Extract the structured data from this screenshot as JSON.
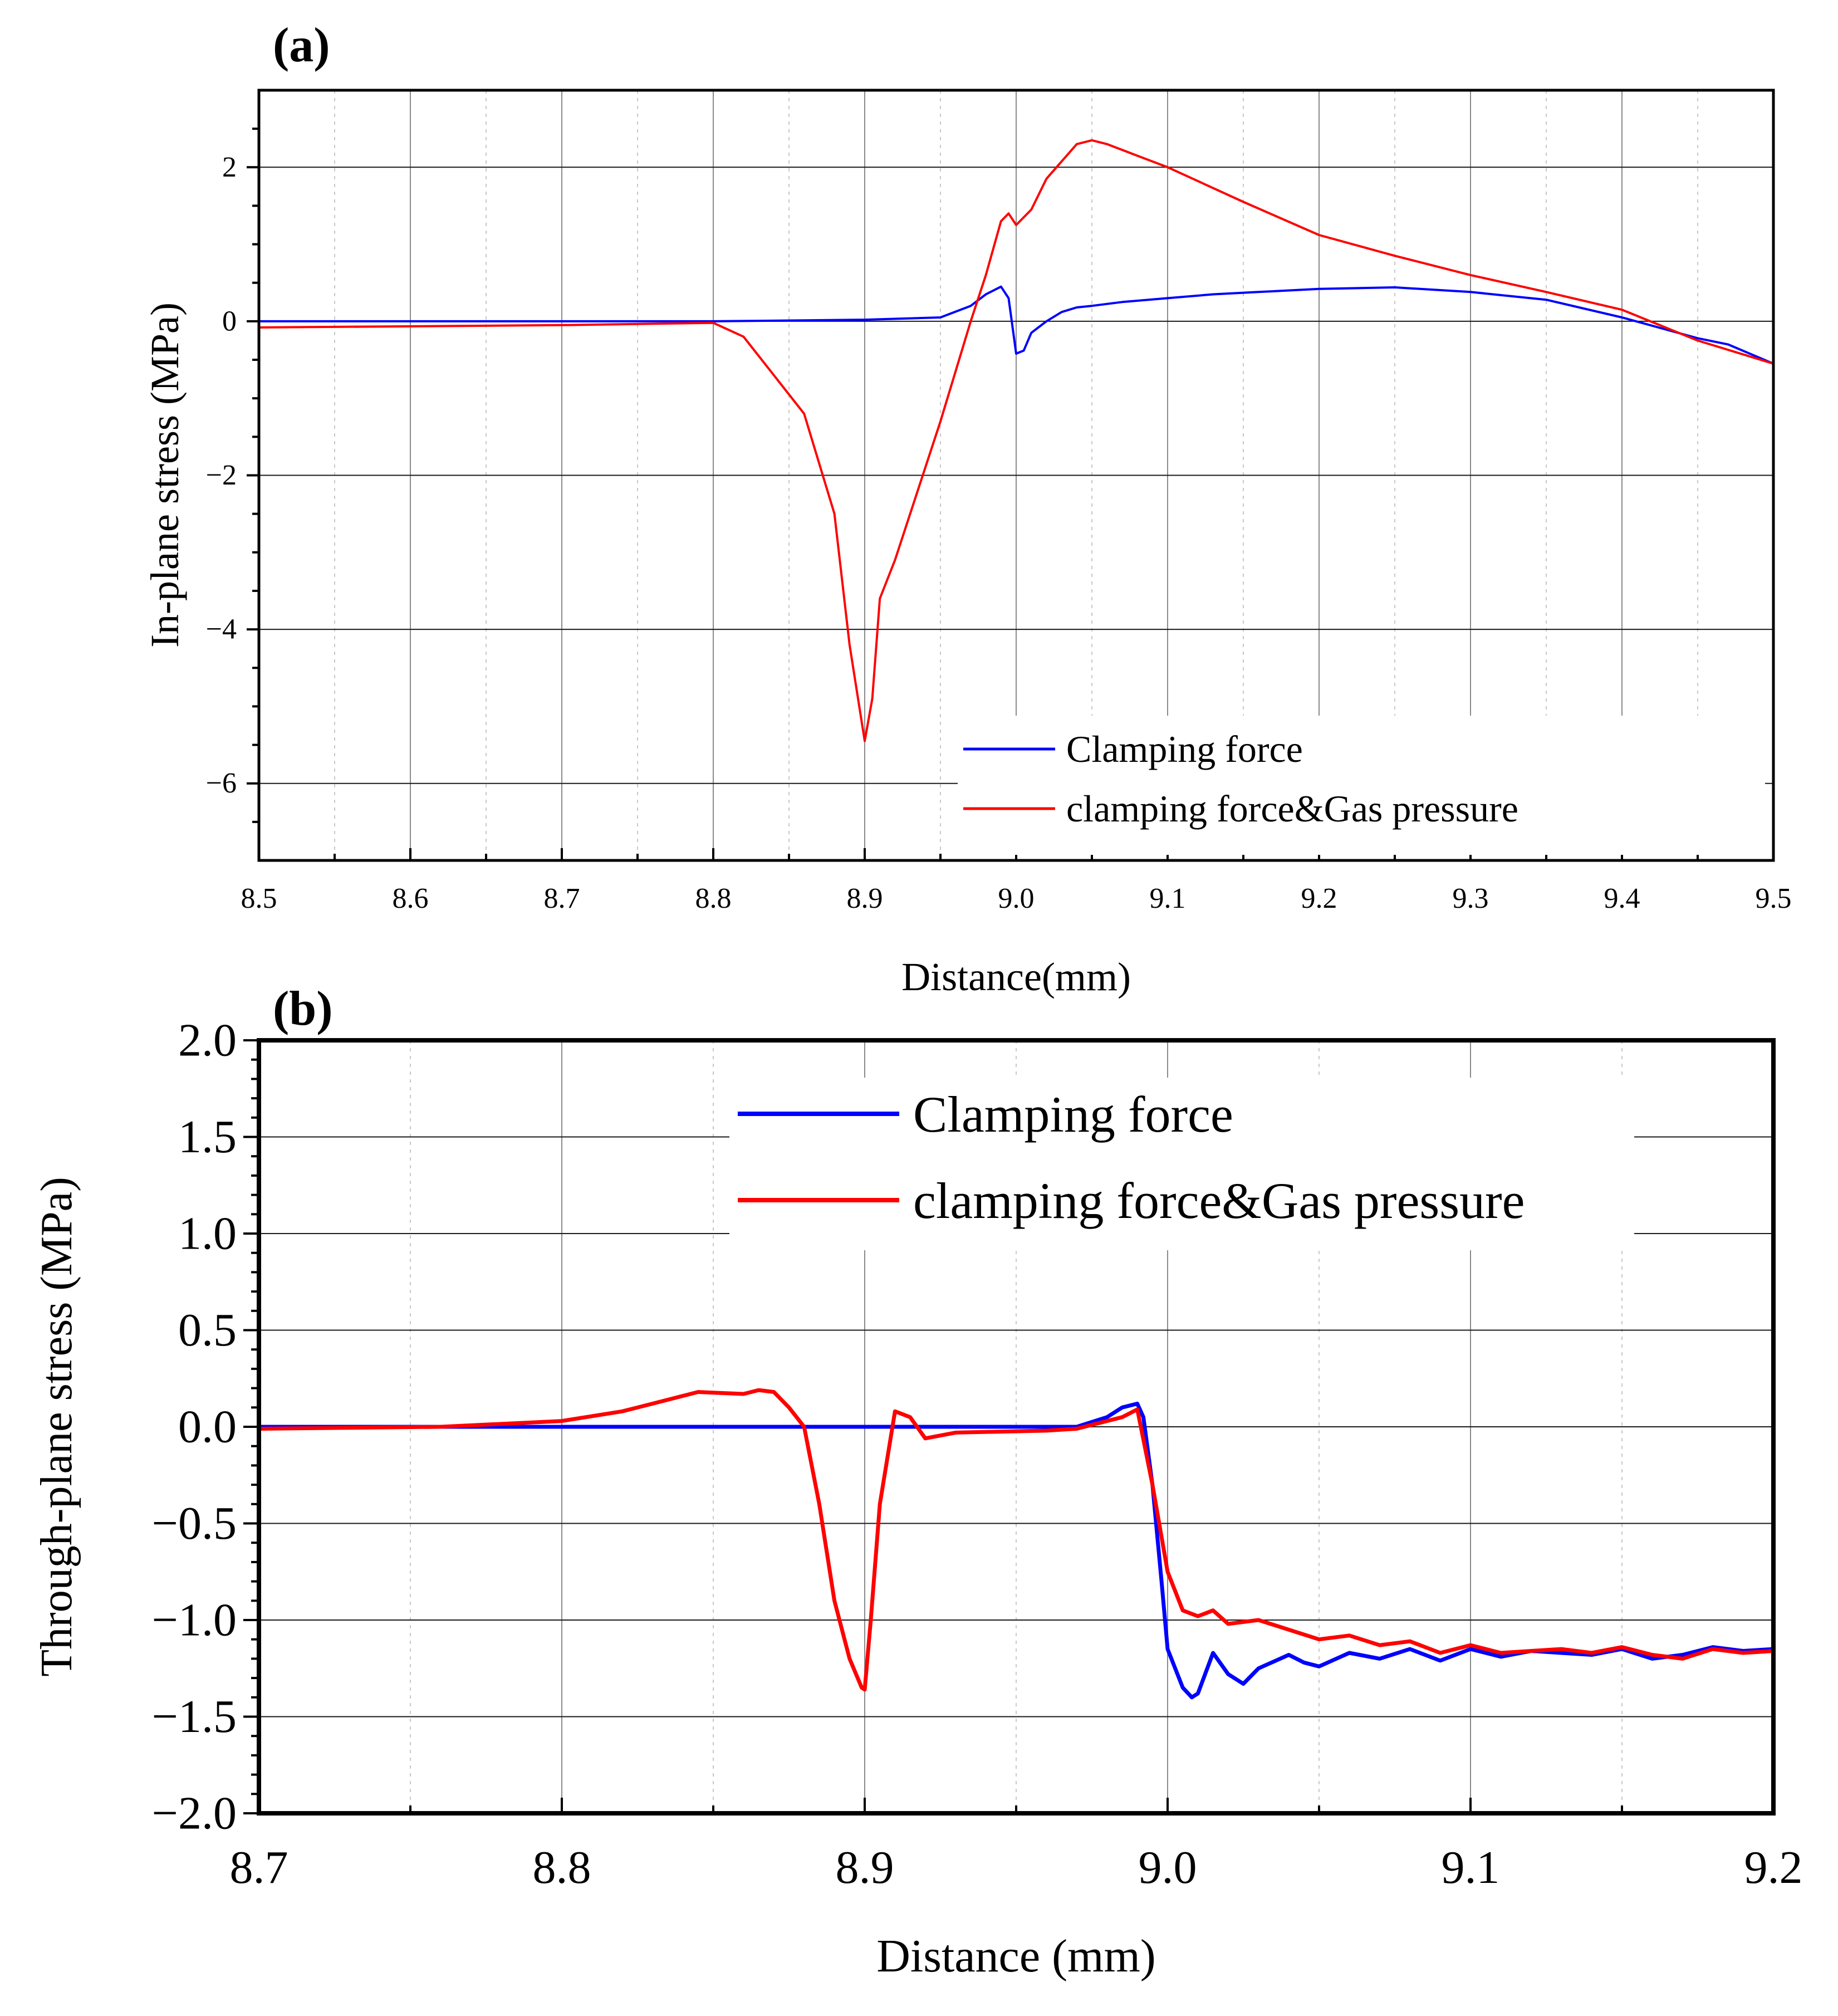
{
  "chart_data": [
    {
      "panel": "(a)",
      "type": "line",
      "xlabel": "Distance(mm)",
      "ylabel": "In-plane stress (MPa)",
      "xlim": [
        8.5,
        9.5
      ],
      "ylim": [
        -7,
        3
      ],
      "xticks": [
        8.5,
        8.6,
        8.7,
        8.8,
        8.9,
        9.0,
        9.1,
        9.2,
        9.3,
        9.4,
        9.5
      ],
      "xtick_labels": [
        "8.5",
        "8.6",
        "8.7",
        "8.8",
        "8.9",
        "9.0",
        "9.1",
        "9.2",
        "9.3",
        "9.4",
        "9.5"
      ],
      "yticks": [
        -6,
        -4,
        -2,
        0,
        2
      ],
      "ytick_labels": [
        "−6",
        "−4",
        "−2",
        "0",
        "2"
      ],
      "grid": true,
      "legend_position": "bottom-right",
      "series": [
        {
          "name": "Clamping force",
          "color": "#0000ff",
          "x": [
            8.5,
            8.8,
            8.9,
            8.95,
            8.97,
            8.98,
            8.99,
            8.995,
            9.0,
            9.005,
            9.01,
            9.02,
            9.03,
            9.04,
            9.05,
            9.07,
            9.1,
            9.13,
            9.16,
            9.2,
            9.25,
            9.3,
            9.35,
            9.4,
            9.45,
            9.47,
            9.5
          ],
          "y": [
            0.0,
            0.0,
            0.02,
            0.05,
            0.2,
            0.35,
            0.45,
            0.3,
            -0.42,
            -0.38,
            -0.15,
            0.0,
            0.12,
            0.18,
            0.2,
            0.25,
            0.3,
            0.35,
            0.38,
            0.42,
            0.44,
            0.38,
            0.28,
            0.05,
            -0.22,
            -0.3,
            -0.55
          ]
        },
        {
          "name": "clamping force&Gas pressure",
          "color": "#ff0000",
          "x": [
            8.5,
            8.7,
            8.8,
            8.82,
            8.84,
            8.86,
            8.88,
            8.89,
            8.9,
            8.905,
            8.91,
            8.92,
            8.93,
            8.95,
            8.97,
            8.98,
            8.99,
            8.995,
            9.0,
            9.01,
            9.02,
            9.04,
            9.05,
            9.06,
            9.08,
            9.1,
            9.15,
            9.2,
            9.25,
            9.3,
            9.35,
            9.4,
            9.45,
            9.5
          ],
          "y": [
            -0.08,
            -0.05,
            -0.02,
            -0.2,
            -0.7,
            -1.2,
            -2.5,
            -4.2,
            -5.45,
            -4.9,
            -3.6,
            -3.1,
            -2.5,
            -1.3,
            0.0,
            0.6,
            1.3,
            1.4,
            1.25,
            1.45,
            1.85,
            2.3,
            2.35,
            2.3,
            2.15,
            2.0,
            1.55,
            1.12,
            0.85,
            0.6,
            0.38,
            0.15,
            -0.25,
            -0.55
          ]
        }
      ]
    },
    {
      "panel": "(b)",
      "type": "line",
      "xlabel": "Distance (mm)",
      "ylabel": "Through-plane stress (MPa)",
      "xlim": [
        8.7,
        9.2
      ],
      "ylim": [
        -2.0,
        2.0
      ],
      "xticks": [
        8.7,
        8.8,
        8.9,
        9.0,
        9.1,
        9.2
      ],
      "xtick_labels": [
        "8.7",
        "8.8",
        "8.9",
        "9.0",
        "9.1",
        "9.2"
      ],
      "yticks": [
        -2.0,
        -1.5,
        -1.0,
        -0.5,
        0.0,
        0.5,
        1.0,
        1.5,
        2.0
      ],
      "ytick_labels": [
        "−2.0",
        "−1.5",
        "−1.0",
        "−0.5",
        "0.0",
        "0.5",
        "1.0",
        "1.5",
        "2.0"
      ],
      "grid": true,
      "legend_position": "top-center",
      "series": [
        {
          "name": "Clamping force",
          "color": "#0000ff",
          "x": [
            8.7,
            8.9,
            8.97,
            8.98,
            8.985,
            8.99,
            8.992,
            8.995,
            8.998,
            9.0,
            9.005,
            9.008,
            9.01,
            9.015,
            9.02,
            9.025,
            9.03,
            9.04,
            9.045,
            9.05,
            9.06,
            9.07,
            9.08,
            9.09,
            9.1,
            9.11,
            9.12,
            9.13,
            9.14,
            9.15,
            9.16,
            9.17,
            9.18,
            9.19,
            9.2
          ],
          "y": [
            0.0,
            0.0,
            0.0,
            0.05,
            0.1,
            0.12,
            0.05,
            -0.3,
            -0.8,
            -1.15,
            -1.35,
            -1.4,
            -1.38,
            -1.17,
            -1.28,
            -1.33,
            -1.25,
            -1.18,
            -1.22,
            -1.24,
            -1.17,
            -1.2,
            -1.15,
            -1.21,
            -1.15,
            -1.19,
            -1.16,
            -1.17,
            -1.18,
            -1.15,
            -1.2,
            -1.18,
            -1.14,
            -1.16,
            -1.15
          ]
        },
        {
          "name": "clamping force&Gas pressure",
          "color": "#ff0000",
          "x": [
            8.7,
            8.76,
            8.8,
            8.82,
            8.83,
            8.845,
            8.86,
            8.865,
            8.87,
            8.875,
            8.88,
            8.885,
            8.89,
            8.895,
            8.899,
            8.9,
            8.902,
            8.905,
            8.91,
            8.915,
            8.92,
            8.93,
            8.96,
            8.97,
            8.985,
            8.99,
            8.995,
            9.0,
            9.005,
            9.01,
            9.015,
            9.02,
            9.03,
            9.04,
            9.05,
            9.06,
            9.07,
            9.08,
            9.09,
            9.1,
            9.11,
            9.12,
            9.13,
            9.14,
            9.15,
            9.16,
            9.17,
            9.18,
            9.19,
            9.2
          ],
          "y": [
            -0.01,
            0.0,
            0.03,
            0.08,
            0.12,
            0.18,
            0.17,
            0.19,
            0.18,
            0.1,
            0.0,
            -0.4,
            -0.9,
            -1.2,
            -1.35,
            -1.36,
            -1.0,
            -0.4,
            0.08,
            0.05,
            -0.06,
            -0.03,
            -0.02,
            -0.01,
            0.05,
            0.09,
            -0.3,
            -0.75,
            -0.95,
            -0.98,
            -0.95,
            -1.02,
            -1.0,
            -1.05,
            -1.1,
            -1.08,
            -1.13,
            -1.11,
            -1.17,
            -1.13,
            -1.17,
            -1.16,
            -1.15,
            -1.17,
            -1.14,
            -1.18,
            -1.2,
            -1.15,
            -1.17,
            -1.16
          ]
        }
      ]
    }
  ]
}
